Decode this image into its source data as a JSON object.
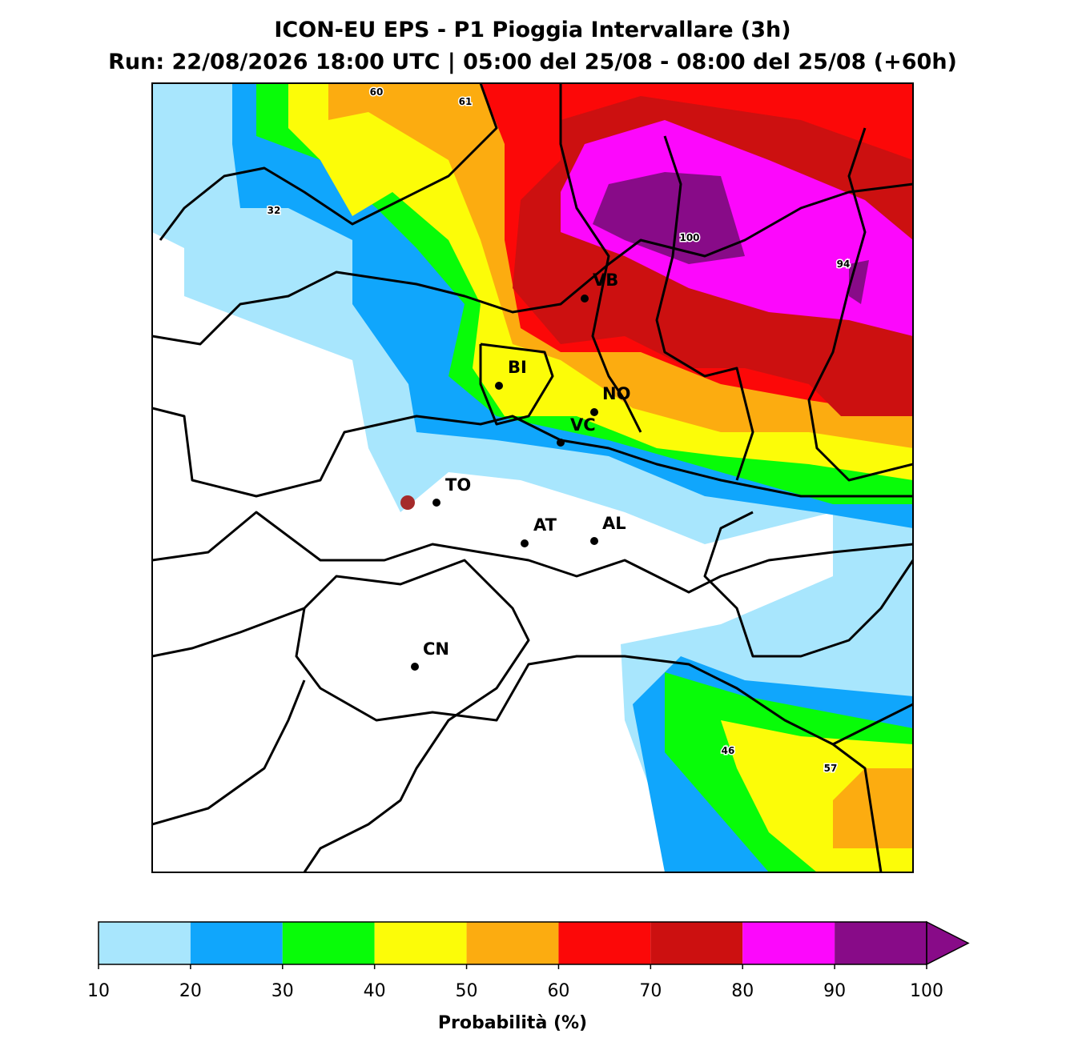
{
  "title": "ICON-EU EPS - P1 Pioggia Intervallare (3h)",
  "subtitle": "Run: 22/08/2026 18:00 UTC | 05:00 del 25/08 - 08:00 del 25/08 (+60h)",
  "cities": [
    "VB",
    "BI",
    "NO",
    "VC",
    "TO",
    "AT",
    "AL",
    "CN"
  ],
  "contour_labels": [
    60,
    61,
    32,
    100,
    94,
    46,
    57
  ],
  "colorbar": {
    "label": "Probabilità (%)",
    "ticks": [
      10,
      20,
      30,
      40,
      50,
      60,
      70,
      80,
      90,
      100
    ],
    "colors": [
      "#a8e6fd",
      "#10a6fc",
      "#08fc08",
      "#fcfc08",
      "#fcac10",
      "#fc0808",
      "#cc1010",
      "#fc08fc",
      "#880b88"
    ]
  }
}
